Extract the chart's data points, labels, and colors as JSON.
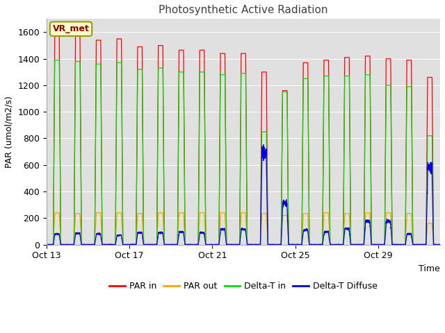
{
  "title": "Photosynthetic Active Radiation",
  "ylabel": "PAR (umol/m2/s)",
  "xlabel": "Time",
  "legend_label": "VR_met",
  "series_labels": [
    "PAR in",
    "PAR out",
    "Delta-T in",
    "Delta-T Diffuse"
  ],
  "series_colors": [
    "#ff0000",
    "#ffa500",
    "#00dd00",
    "#0000ee"
  ],
  "ylim": [
    0,
    1700
  ],
  "plot_bg_color": "#e0e0e0",
  "fig_bg_color": "#ffffff",
  "xtick_labels": [
    "Oct 13",
    "Oct 17",
    "Oct 21",
    "Oct 25",
    "Oct 29"
  ],
  "xtick_positions": [
    0,
    4,
    8,
    12,
    16
  ],
  "num_days": 19,
  "par_in_peaks": [
    1580,
    1570,
    1540,
    1550,
    1490,
    1500,
    1465,
    1465,
    1440,
    1440,
    1300,
    1160,
    1370,
    1390,
    1410,
    1420,
    1400,
    1390,
    1260
  ],
  "par_out_peaks": [
    240,
    235,
    240,
    240,
    235,
    240,
    240,
    240,
    240,
    240,
    235,
    220,
    235,
    240,
    235,
    240,
    240,
    235,
    160
  ],
  "delta_in_peaks": [
    1390,
    1380,
    1360,
    1370,
    1320,
    1330,
    1300,
    1300,
    1280,
    1290,
    850,
    1150,
    1250,
    1270,
    1270,
    1280,
    1200,
    1190,
    820
  ],
  "delta_diff_peaks": [
    80,
    85,
    80,
    70,
    90,
    90,
    95,
    90,
    115,
    115,
    690,
    310,
    110,
    95,
    120,
    175,
    175,
    80,
    580
  ]
}
